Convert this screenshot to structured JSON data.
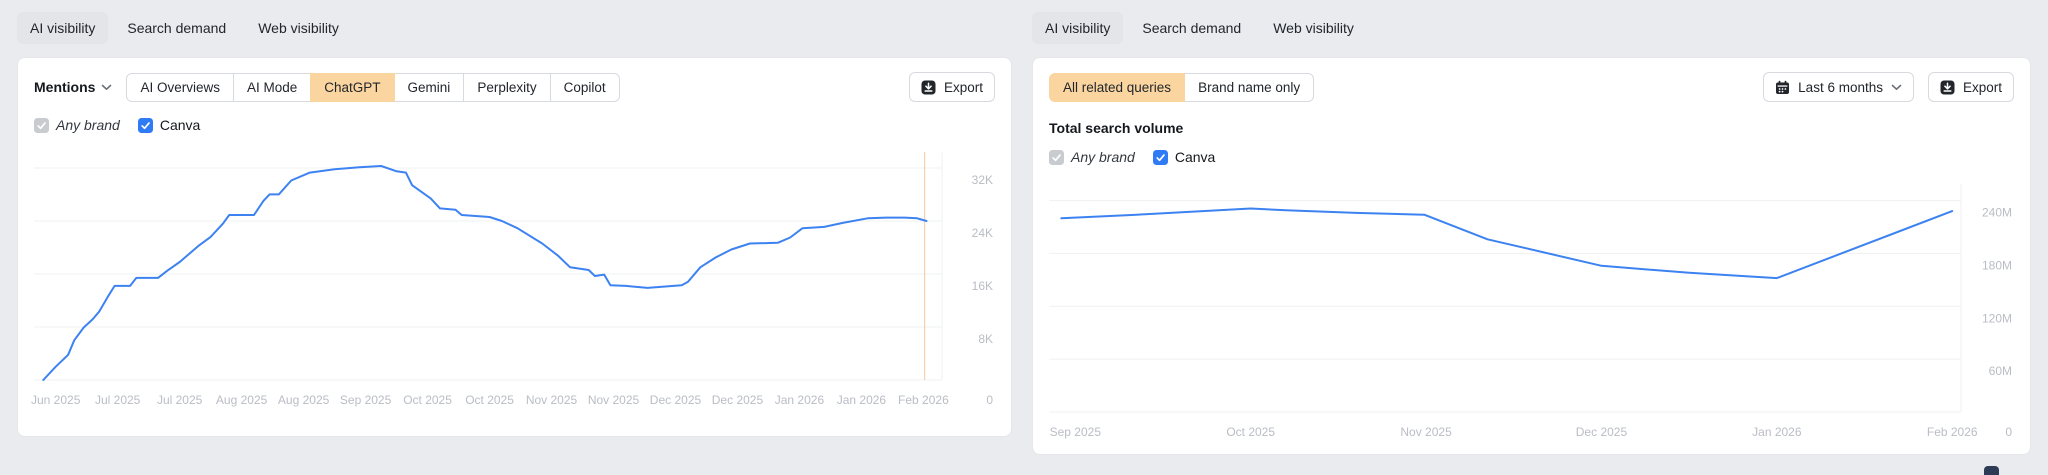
{
  "colors": {
    "page_bg": "#e9ebee",
    "card_bg": "#ffffff",
    "tab_active_bg": "#e4e5e8",
    "segment_active_bg": "#fbd5a0",
    "line_blue": "#3d82f1",
    "checkbox_gray": "#c8cbd0",
    "checkbox_blue": "#2f7af5",
    "grid": "#eff0f2",
    "axis_text": "#b9bdc4",
    "marker_orange": "#f4c9a0",
    "icon_dark": "#22262b"
  },
  "left_panel": {
    "tabs": [
      {
        "label": "AI visibility",
        "active": true
      },
      {
        "label": "Search demand",
        "active": false
      },
      {
        "label": "Web visibility",
        "active": false
      }
    ],
    "toolbar": {
      "metric_label": "Mentions",
      "segments": [
        {
          "label": "AI Overviews",
          "active": false
        },
        {
          "label": "AI Mode",
          "active": false
        },
        {
          "label": "ChatGPT",
          "active": true
        },
        {
          "label": "Gemini",
          "active": false
        },
        {
          "label": "Perplexity",
          "active": false
        },
        {
          "label": "Copilot",
          "active": false
        }
      ],
      "export_label": "Export"
    },
    "legend": [
      {
        "label": "Any brand",
        "checked": true,
        "style": "gray-italic"
      },
      {
        "label": "Canva",
        "checked": true,
        "style": "blue"
      }
    ]
  },
  "right_panel": {
    "tabs": [
      {
        "label": "AI visibility",
        "active": true
      },
      {
        "label": "Search demand",
        "active": false
      },
      {
        "label": "Web visibility",
        "active": false
      }
    ],
    "toolbar": {
      "segments": [
        {
          "label": "All related queries",
          "active": true
        },
        {
          "label": "Brand name only",
          "active": false
        }
      ],
      "date_range_label": "Last 6 months",
      "export_label": "Export"
    },
    "section_title": "Total search volume",
    "legend": [
      {
        "label": "Any brand",
        "checked": true,
        "style": "gray-italic"
      },
      {
        "label": "Canva",
        "checked": true,
        "style": "blue"
      }
    ]
  },
  "chart_data": [
    {
      "type": "line",
      "title": "Mentions — ChatGPT — Canva",
      "legend_entries": [
        "Any brand",
        "Canva"
      ],
      "x_tick_labels": [
        "Jun 2025",
        "Jul 2025",
        "Jul 2025",
        "Aug 2025",
        "Aug 2025",
        "Sep 2025",
        "Oct 2025",
        "Oct 2025",
        "Nov 2025",
        "Nov 2025",
        "Dec 2025",
        "Dec 2025",
        "Jan 2026",
        "Jan 2026",
        "Feb 2026"
      ],
      "y_tick_labels": [
        "8K",
        "16K",
        "24K",
        "32K"
      ],
      "y_gridlines": [
        8000,
        16000,
        24000,
        32000
      ],
      "y_zero_label": "0",
      "xlim": [
        -0.35,
        14.3
      ],
      "ylim": [
        0,
        33500
      ],
      "grid": true,
      "legend_position": "top-left",
      "marker_x": 14.02,
      "series": [
        {
          "name": "Canva",
          "points": [
            [
              -0.2,
              0
            ],
            [
              0,
              2000
            ],
            [
              0.1,
              2900
            ],
            [
              0.2,
              3800
            ],
            [
              0.3,
              6000
            ],
            [
              0.45,
              7900
            ],
            [
              0.6,
              9200
            ],
            [
              0.7,
              10300
            ],
            [
              0.85,
              12700
            ],
            [
              0.95,
              14200
            ],
            [
              1.2,
              14200
            ],
            [
              1.3,
              15400
            ],
            [
              1.65,
              15400
            ],
            [
              1.8,
              16500
            ],
            [
              2.0,
              17800
            ],
            [
              2.3,
              20200
            ],
            [
              2.5,
              21600
            ],
            [
              2.7,
              23600
            ],
            [
              2.8,
              24900
            ],
            [
              3.2,
              24900
            ],
            [
              3.35,
              27000
            ],
            [
              3.45,
              28000
            ],
            [
              3.6,
              28000
            ],
            [
              3.8,
              30100
            ],
            [
              4.1,
              31300
            ],
            [
              4.5,
              31800
            ],
            [
              4.9,
              32100
            ],
            [
              5.25,
              32300
            ],
            [
              5.5,
              31500
            ],
            [
              5.65,
              31300
            ],
            [
              5.75,
              29400
            ],
            [
              6.05,
              27400
            ],
            [
              6.2,
              25900
            ],
            [
              6.45,
              25700
            ],
            [
              6.55,
              24900
            ],
            [
              7.0,
              24600
            ],
            [
              7.2,
              24000
            ],
            [
              7.45,
              22900
            ],
            [
              7.85,
              20600
            ],
            [
              8.1,
              18800
            ],
            [
              8.3,
              17000
            ],
            [
              8.6,
              16600
            ],
            [
              8.7,
              15700
            ],
            [
              8.85,
              15900
            ],
            [
              8.95,
              14300
            ],
            [
              9.2,
              14200
            ],
            [
              9.55,
              13900
            ],
            [
              10.1,
              14300
            ],
            [
              10.2,
              14800
            ],
            [
              10.4,
              17000
            ],
            [
              10.65,
              18500
            ],
            [
              10.9,
              19700
            ],
            [
              11.2,
              20600
            ],
            [
              11.65,
              20700
            ],
            [
              11.85,
              21500
            ],
            [
              12.05,
              22900
            ],
            [
              12.4,
              23100
            ],
            [
              12.7,
              23700
            ],
            [
              13.1,
              24400
            ],
            [
              13.4,
              24500
            ],
            [
              13.7,
              24500
            ],
            [
              13.9,
              24400
            ],
            [
              14.05,
              24000
            ]
          ]
        }
      ]
    },
    {
      "type": "line",
      "title": "Total search volume — All related queries — Canva",
      "legend_entries": [
        "Any brand",
        "Canva"
      ],
      "x_tick_labels": [
        "Sep 2025",
        "Oct 2025",
        "Nov 2025",
        "Dec 2025",
        "Jan 2026",
        "Feb 2026"
      ],
      "y_tick_labels": [
        "60M",
        "120M",
        "180M",
        "240M"
      ],
      "y_gridlines": [
        60,
        120,
        180,
        240
      ],
      "y_zero_label": "0",
      "xlim": [
        -0.15,
        5.05
      ],
      "ylim": [
        0,
        252
      ],
      "grid": true,
      "legend_position": "top-left",
      "marker_x": null,
      "series": [
        {
          "name": "Canva",
          "points": [
            [
              -0.08,
              220
            ],
            [
              0.35,
              224
            ],
            [
              1.0,
              231
            ],
            [
              1.2,
              229
            ],
            [
              1.6,
              226
            ],
            [
              1.99,
              224
            ],
            [
              2.35,
              196
            ],
            [
              3.0,
              166
            ],
            [
              3.5,
              158
            ],
            [
              4.0,
              152
            ],
            [
              5.0,
              228
            ]
          ]
        }
      ]
    }
  ]
}
